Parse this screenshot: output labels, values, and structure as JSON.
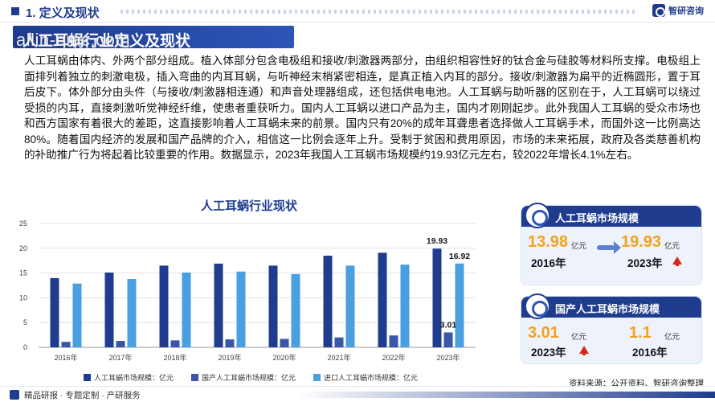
{
  "header": {
    "section": "1. 定义及现状",
    "brand": "智研咨询"
  },
  "banner": {
    "title": "人工耳蜗行业定义及现状",
    "watermark": "allin-emc.com"
  },
  "paragraph": "人工耳蜗由体内、外两个部分组成。植入体部分包含电极组和接收/刺激器两部分，由组织相容性好的钛合金与硅胶等材料所支撑。电极组上面排列着独立的刺激电极，插入弯曲的内耳耳蜗，与听神经末梢紧密相连，是真正植入内耳的部分。接收/刺激器为扁平的近椭圆形，置于耳后皮下。体外部分由头件（与接收/刺激器相连通）和声音处理器组成，还包括供电电池。人工耳蜗与助听器的区别在于，人工耳蜗可以绕过受损的内耳，直接刺激听觉神经纤维，使患者重获听力。国内人工耳蜗以进口产品为主，国内才刚刚起步。此外我国人工耳蜗的受众市场也和西方国家有着很大的差距，这直接影响着人工耳蜗未来的前景。国内只有20%的成年耳聋患者选择做人工耳蜗手术，而国外这一比例高达80%。随着国内经济的发展和国产品牌的介入，相信这一比例会逐年上升。受制于贫困和费用原因，市场的未来拓展，政府及各类慈善机构的补助推广行为将起着比较重要的作用。数据显示，2023年我国人工耳蜗市场规模约19.93亿元左右，较2022年增长4.1%左右。",
  "chart_data": {
    "type": "bar",
    "title": "人工耳蜗行业现状",
    "categories": [
      "2016年",
      "2017年",
      "2018年",
      "2019年",
      "2020年",
      "2021年",
      "2022年",
      "2023年"
    ],
    "ylim": [
      0,
      25
    ],
    "yticks": [
      "0",
      "5",
      "10",
      "15",
      "20",
      "25"
    ],
    "grid": true,
    "legend_position": "bottom",
    "series": [
      {
        "name": "人工耳蜗市场规模：亿元",
        "color": "#1f3c8f",
        "values": [
          13.98,
          15.1,
          16.5,
          16.9,
          16.5,
          18.5,
          19.1,
          19.93
        ]
      },
      {
        "name": "国产人工耳蜗市场规模：亿元",
        "color": "#3b56a8",
        "values": [
          1.1,
          1.3,
          1.4,
          1.6,
          1.7,
          2.0,
          2.4,
          3.01
        ]
      },
      {
        "name": "进口人工耳蜗市场规模：亿元",
        "color": "#4a9fe0",
        "values": [
          12.88,
          13.8,
          15.1,
          15.3,
          14.8,
          16.5,
          16.7,
          16.92
        ]
      }
    ],
    "data_labels": [
      {
        "series": 0,
        "index": 7,
        "text": "19.93"
      },
      {
        "series": 2,
        "index": 7,
        "text": "16.92"
      },
      {
        "series": 1,
        "index": 7,
        "text": "3.01"
      }
    ]
  },
  "card1": {
    "title": "人工耳蜗市场规模",
    "from_value": "13.98",
    "from_unit": "亿元",
    "from_year": "2016年",
    "to_value": "19.93",
    "to_unit": "亿元",
    "to_year": "2023年"
  },
  "card2": {
    "title": "国产人工耳蜗市场规模",
    "a_value": "3.01",
    "a_unit": "亿元",
    "a_year": "2023年",
    "b_value": "1.1",
    "b_unit": "亿元",
    "b_year": "2016年"
  },
  "source": "资料来源：公开资料、智研咨询整理",
  "footer": {
    "text": "精品研报 · 专题定制 · 产研服务"
  }
}
